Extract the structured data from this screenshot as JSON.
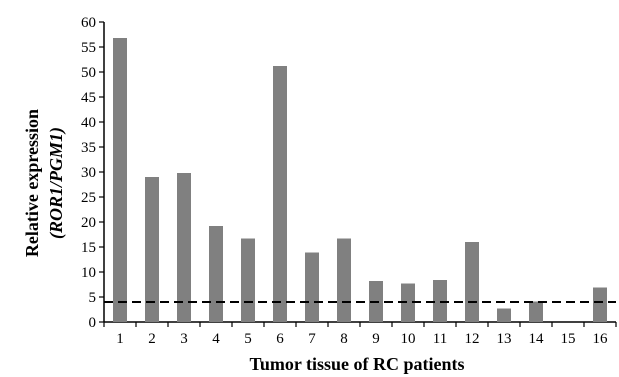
{
  "chart_data": {
    "type": "bar",
    "categories": [
      "1",
      "2",
      "3",
      "4",
      "5",
      "6",
      "7",
      "8",
      "9",
      "10",
      "11",
      "12",
      "13",
      "14",
      "15",
      "16"
    ],
    "values": [
      56.8,
      29.0,
      29.8,
      19.2,
      16.7,
      51.2,
      13.9,
      16.7,
      8.2,
      7.7,
      8.4,
      16.0,
      2.7,
      4.1,
      0.0,
      6.9
    ],
    "xlabel": "Tumor tissue of RC patients",
    "ylabel_line1": "Relative expression",
    "ylabel_line2": "(ROR1/PGM1)",
    "ylim": [
      0,
      60
    ],
    "yticks": [
      0,
      5,
      10,
      15,
      20,
      25,
      30,
      35,
      40,
      45,
      50,
      55,
      60
    ],
    "threshold": 4,
    "threshold_style": "dashed",
    "grid": false,
    "legend": "none",
    "bar_color": "#808080"
  }
}
